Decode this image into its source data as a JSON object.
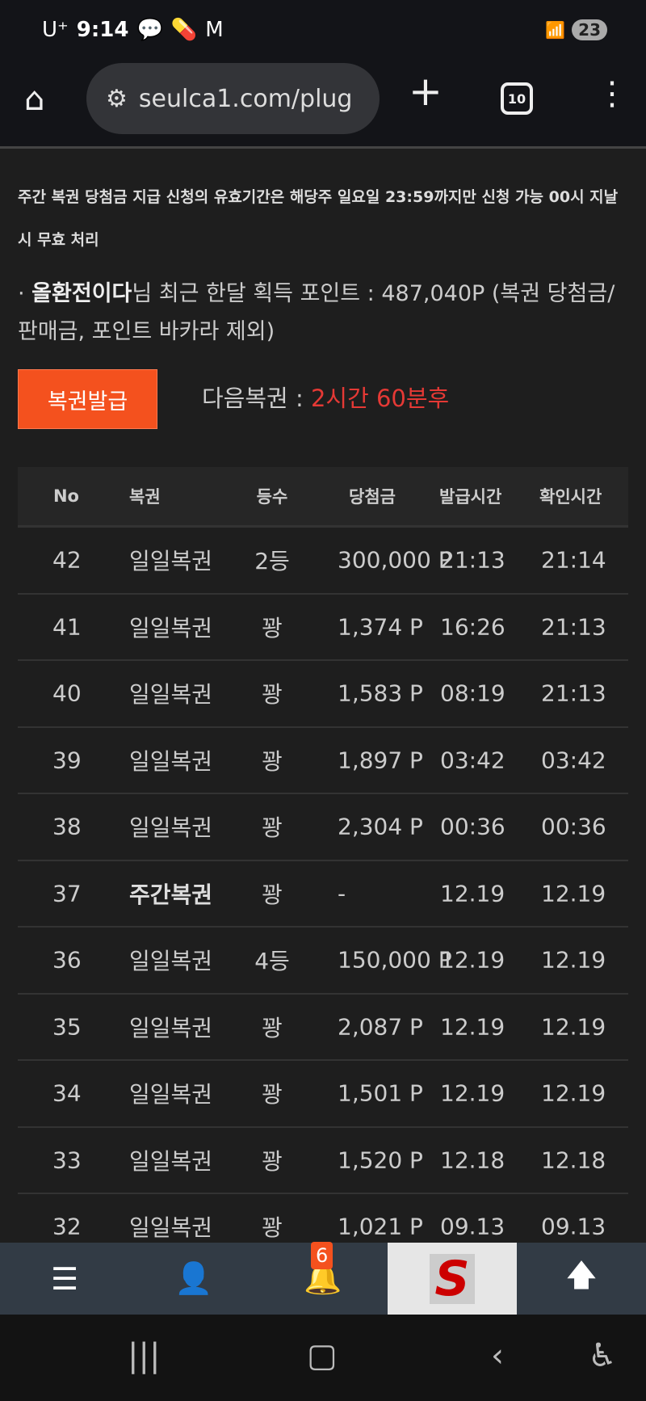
{
  "status": {
    "carrier": "U⁺",
    "time": "9:14",
    "battery": "23",
    "notif_icons": [
      "kakaotalk-icon",
      "pill-icon",
      "gmail-icon"
    ]
  },
  "browser": {
    "url": "seulca1.com/plug",
    "tab_count": "10"
  },
  "notice": "주간 복권 당첨금 지급 신청의 유효기간은 해당주 일요일 23:59까지만 신청 가능 00시 지날 시 무효 처리",
  "points": {
    "prefix": "· ",
    "user": "올환전이다",
    "text": "님 최근 한달 획득 포인트 : 487,040P (복권 당첨금/판매금, 포인트 바카라 제외)"
  },
  "issue_button": "복권발급",
  "next": {
    "label": "다음복권 : ",
    "value": "2시간 60분후"
  },
  "table": {
    "headers": [
      "No",
      "복권",
      "등수",
      "당첨금",
      "발급시간",
      "확인시간"
    ],
    "rows": [
      [
        "42",
        "일일복권",
        "2등",
        "300,000 P",
        "21:13",
        "21:14"
      ],
      [
        "41",
        "일일복권",
        "꽝",
        "1,374 P",
        "16:26",
        "21:13"
      ],
      [
        "40",
        "일일복권",
        "꽝",
        "1,583 P",
        "08:19",
        "21:13"
      ],
      [
        "39",
        "일일복권",
        "꽝",
        "1,897 P",
        "03:42",
        "03:42"
      ],
      [
        "38",
        "일일복권",
        "꽝",
        "2,304 P",
        "00:36",
        "00:36"
      ],
      [
        "37",
        "주간복권",
        "꽝",
        "-",
        "12.19",
        "12.19"
      ],
      [
        "36",
        "일일복권",
        "4등",
        "150,000 P",
        "12.19",
        "12.19"
      ],
      [
        "35",
        "일일복권",
        "꽝",
        "2,087 P",
        "12.19",
        "12.19"
      ],
      [
        "34",
        "일일복권",
        "꽝",
        "1,501 P",
        "12.19",
        "12.19"
      ],
      [
        "33",
        "일일복권",
        "꽝",
        "1,520 P",
        "12.18",
        "12.18"
      ],
      [
        "32",
        "일일복권",
        "꽝",
        "1,021 P",
        "09.13",
        "09.13"
      ]
    ]
  },
  "bottom_nav": {
    "notification_count": "6",
    "logo_letter": "S"
  },
  "colors": {
    "accent": "#f4511e",
    "next_time": "#e53935",
    "nav_bg": "#323b45"
  }
}
